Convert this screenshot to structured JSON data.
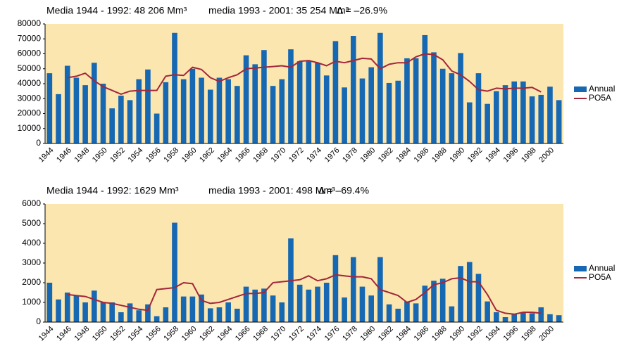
{
  "chart_data": [
    {
      "type": "bar",
      "annotations": [
        "Media 1944 - 1992: 48 206 Mm³",
        "media 1993 - 2001: 35 254 Mm³",
        "Δ = –26.9%"
      ],
      "categories": [
        "1944",
        null,
        "1946",
        null,
        "1948",
        null,
        "1950",
        null,
        "1952",
        null,
        "1954",
        null,
        "1956",
        null,
        "1958",
        null,
        "1960",
        null,
        "1962",
        null,
        "1964",
        null,
        "1966",
        null,
        "1968",
        null,
        "1970",
        null,
        "1972",
        null,
        "1974",
        null,
        "1976",
        null,
        "1978",
        null,
        "1980",
        null,
        "1982",
        null,
        "1984",
        null,
        "1986",
        null,
        "1988",
        null,
        "1990",
        null,
        "1992",
        null,
        "1994",
        null,
        "1996",
        null,
        "1998",
        null,
        "2000",
        null
      ],
      "series": [
        {
          "name": "Annual",
          "type": "bar",
          "color": "#1668b3",
          "values": [
            47000,
            33000,
            52000,
            44000,
            39000,
            54000,
            40000,
            23500,
            32000,
            29000,
            43000,
            49500,
            20000,
            41000,
            74000,
            43000,
            50000,
            44000,
            36000,
            44000,
            43000,
            38500,
            59000,
            53000,
            62500,
            38500,
            43000,
            63000,
            55000,
            55000,
            54000,
            45500,
            68500,
            37500,
            72000,
            43500,
            51000,
            74000,
            40500,
            42000,
            57000,
            57000,
            72500,
            61000,
            50000,
            47000,
            60500,
            27500,
            47000,
            26500,
            35000,
            39000,
            41500,
            41500,
            31500,
            32500,
            38000,
            29000
          ]
        },
        {
          "name": "PO5A",
          "type": "line",
          "color": "#a3263a",
          "values": [
            null,
            null,
            44000,
            45000,
            47000,
            42000,
            38000,
            35500,
            33000,
            35000,
            35500,
            35500,
            35500,
            45000,
            46000,
            45500,
            51000,
            49500,
            44000,
            41500,
            44000,
            46000,
            50000,
            50500,
            51000,
            51500,
            52000,
            51000,
            55000,
            55500,
            54000,
            52000,
            55000,
            54000,
            55500,
            57000,
            56500,
            50000,
            53000,
            54000,
            54000,
            58000,
            60000,
            59500,
            56000,
            48500,
            46000,
            41500,
            36000,
            35000,
            37000,
            36500,
            37000,
            37000,
            37500,
            34500,
            null,
            null
          ]
        }
      ],
      "ylim": [
        0,
        80000
      ],
      "yticks": [
        0,
        10000,
        20000,
        30000,
        40000,
        50000,
        60000,
        70000,
        80000
      ],
      "background": "#fce6b0",
      "legend": "right"
    },
    {
      "type": "bar",
      "annotations": [
        "Media 1944 - 1992: 1629 Mm³",
        "media 1993 - 2001: 498 Mm³",
        "Δ = –69.4%"
      ],
      "categories": [
        "1944",
        null,
        "1946",
        null,
        "1948",
        null,
        "1950",
        null,
        "1952",
        null,
        "1954",
        null,
        "1956",
        null,
        "1958",
        null,
        "1960",
        null,
        "1962",
        null,
        "1964",
        null,
        "1966",
        null,
        "1968",
        null,
        "1970",
        null,
        "1972",
        null,
        "1974",
        null,
        "1976",
        null,
        "1978",
        null,
        "1980",
        null,
        "1982",
        null,
        "1984",
        null,
        "1986",
        null,
        "1988",
        null,
        "1990",
        null,
        "1992",
        null,
        "1994",
        null,
        "1996",
        null,
        "1998",
        null,
        "2000",
        null
      ],
      "series": [
        {
          "name": "Annual",
          "type": "bar",
          "color": "#1668b3",
          "values": [
            2000,
            1150,
            1500,
            1350,
            1000,
            1600,
            1000,
            1000,
            500,
            950,
            600,
            900,
            300,
            750,
            5050,
            1300,
            1300,
            1400,
            700,
            750,
            1000,
            680,
            1800,
            1650,
            1700,
            1350,
            1000,
            4250,
            1900,
            1650,
            1800,
            2000,
            3400,
            1250,
            3300,
            1800,
            1350,
            3300,
            900,
            680,
            1050,
            950,
            1850,
            2100,
            2200,
            800,
            2850,
            3050,
            2450,
            1050,
            500,
            250,
            400,
            500,
            450,
            750,
            400,
            350
          ]
        },
        {
          "name": "PO5A",
          "type": "line",
          "color": "#a3263a",
          "values": [
            null,
            null,
            1400,
            1350,
            1300,
            1150,
            1000,
            950,
            850,
            750,
            650,
            600,
            1650,
            1700,
            1750,
            2000,
            1950,
            1100,
            950,
            1000,
            1150,
            1300,
            1450,
            1450,
            1500,
            2000,
            2050,
            2100,
            2150,
            2350,
            2100,
            2200,
            2400,
            2350,
            2300,
            2300,
            2200,
            1650,
            1500,
            1350,
            1000,
            1150,
            1500,
            1900,
            2000,
            2200,
            2250,
            2050,
            2050,
            1400,
            600,
            450,
            400,
            500,
            500,
            450,
            null,
            null
          ]
        }
      ],
      "ylim": [
        0,
        6000
      ],
      "yticks": [
        0,
        1000,
        2000,
        3000,
        4000,
        5000,
        6000
      ],
      "background": "#fce6b0",
      "legend": "right"
    }
  ]
}
